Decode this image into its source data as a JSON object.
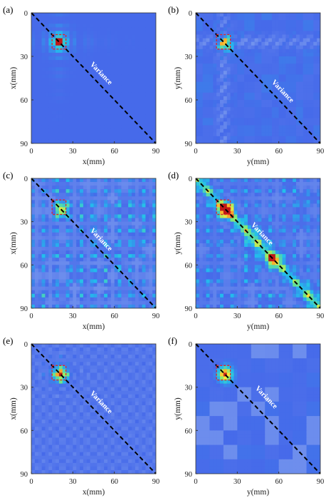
{
  "colors": {
    "background_map": "#4a6ee8",
    "diagonal": "#000000",
    "highlight_box": "#e0262a"
  },
  "chart_data": [
    {
      "id": "a",
      "type": "heatmap",
      "panel_label": "(a)",
      "xlabel": "x(mm)",
      "ylabel": "x(mm)",
      "xlim": [
        0,
        90
      ],
      "ylim": [
        0,
        90
      ],
      "xticks": [
        "0",
        "30",
        "60",
        "90"
      ],
      "yticks": [
        "0",
        "30",
        "60",
        "90"
      ],
      "annotation": "Variance",
      "diagonal": "dashed",
      "highlight_box": {
        "x": [
          15,
          25
        ],
        "y": [
          15,
          25
        ]
      },
      "hotspots": [
        {
          "x": 20,
          "y": 20,
          "value": 1.0,
          "sigma": 2.5
        },
        {
          "x": 20,
          "y": 20,
          "value": 0.5,
          "sigma": 6.0
        }
      ],
      "pattern": {
        "type": "cross",
        "center": 20,
        "period": 6,
        "amplitude": 0.3,
        "decay": 14
      }
    },
    {
      "id": "b",
      "type": "heatmap",
      "panel_label": "(b)",
      "xlabel": "y(mm)",
      "ylabel": "y(mm)",
      "xlim": [
        0,
        90
      ],
      "ylim": [
        0,
        90
      ],
      "xticks": [
        "0",
        "30",
        "60",
        "90"
      ],
      "yticks": [
        "0",
        "30",
        "60",
        "90"
      ],
      "annotation": "Variance",
      "diagonal": "dashed",
      "highlight_box": {
        "x": [
          15,
          25
        ],
        "y": [
          15,
          25
        ]
      },
      "hotspots": [
        {
          "x": 21,
          "y": 21,
          "value": 1.0,
          "sigma": 3.5
        },
        {
          "x": 21,
          "y": 21,
          "value": 0.45,
          "sigma": 5.5
        }
      ],
      "pattern": {
        "type": "bands",
        "center": 20,
        "period": 9,
        "amplitude": -0.18
      }
    },
    {
      "id": "c",
      "type": "heatmap",
      "panel_label": "(c)",
      "xlabel": "x(mm)",
      "ylabel": "x(mm)",
      "xlim": [
        0,
        90
      ],
      "ylim": [
        0,
        90
      ],
      "xticks": [
        "0",
        "30",
        "60",
        "90"
      ],
      "yticks": [
        "0",
        "30",
        "60",
        "90"
      ],
      "annotation": "Variance",
      "diagonal": "dashed",
      "highlight_box": {
        "x": [
          15,
          25
        ],
        "y": [
          15,
          25
        ]
      },
      "hotspots": [
        {
          "x": 22,
          "y": 22,
          "value": 1.0,
          "sigma": 3.5
        },
        {
          "x": 62,
          "y": 60,
          "value": 0.55,
          "sigma": 2.5
        },
        {
          "x": 73,
          "y": 73,
          "value": 0.4,
          "sigma": 3.0
        },
        {
          "x": 86,
          "y": 86,
          "value": 0.5,
          "sigma": 2.5
        },
        {
          "x": 88,
          "y": 23,
          "value": 0.55,
          "sigma": 2.5
        },
        {
          "x": 23,
          "y": 88,
          "value": 0.5,
          "sigma": 2.5
        }
      ],
      "pattern": {
        "type": "grid",
        "period": 9,
        "amplitude": 0.28
      }
    },
    {
      "id": "d",
      "type": "heatmap",
      "panel_label": "(d)",
      "xlabel": "y(mm)",
      "ylabel": "y(mm)",
      "xlim": [
        0,
        90
      ],
      "ylim": [
        0,
        90
      ],
      "xticks": [
        "0",
        "30",
        "60",
        "90"
      ],
      "yticks": [
        "0",
        "30",
        "60",
        "90"
      ],
      "annotation": "Variance",
      "diagonal": "dashed",
      "highlight_box": {
        "x": [
          15,
          25
        ],
        "y": [
          15,
          25
        ]
      },
      "hotspots": [
        {
          "x": 22,
          "y": 22,
          "value": 1.0,
          "sigma": 3.5
        },
        {
          "x": 56,
          "y": 56,
          "value": 0.85,
          "sigma": 3.0
        }
      ],
      "ridge": {
        "value": 0.3,
        "width": 6
      },
      "pattern": {
        "type": "grid",
        "period": 9,
        "amplitude": 0.2
      }
    },
    {
      "id": "e",
      "type": "heatmap",
      "panel_label": "(e)",
      "xlabel": "x(mm)",
      "ylabel": "x(mm)",
      "xlim": [
        0,
        90
      ],
      "ylim": [
        0,
        90
      ],
      "xticks": [
        "0",
        "30",
        "60",
        "90"
      ],
      "yticks": [
        "0",
        "30",
        "60",
        "90"
      ],
      "annotation": "Variance",
      "diagonal": "dashed",
      "highlight_box": {
        "x": [
          15,
          25
        ],
        "y": [
          15,
          25
        ]
      },
      "hotspots": [
        {
          "x": 21,
          "y": 21,
          "value": 1.0,
          "sigma": 3.5
        },
        {
          "x": 21,
          "y": 21,
          "value": 0.45,
          "sigma": 6.0
        }
      ],
      "pattern": {
        "type": "cross",
        "center": 21,
        "period": 6,
        "amplitude": 0.28,
        "decay": 14,
        "grid_amplitude": -0.12
      }
    },
    {
      "id": "f",
      "type": "heatmap",
      "panel_label": "(f)",
      "xlabel": "y(mm)",
      "ylabel": "y(mm)",
      "xlim": [
        0,
        90
      ],
      "ylim": [
        0,
        90
      ],
      "xticks": [
        "0",
        "30",
        "60",
        "90"
      ],
      "yticks": [
        "0",
        "30",
        "60",
        "90"
      ],
      "annotation": "Variance",
      "diagonal": "dashed",
      "highlight_box": {
        "x": [
          15,
          25
        ],
        "y": [
          15,
          25
        ]
      },
      "hotspots": [
        {
          "x": 21,
          "y": 21,
          "value": 1.0,
          "sigma": 3.5
        },
        {
          "x": 21,
          "y": 21,
          "value": 0.4,
          "sigma": 5.5
        }
      ],
      "pattern": {
        "type": "spots",
        "period": 10,
        "amplitude": -0.18
      }
    }
  ]
}
